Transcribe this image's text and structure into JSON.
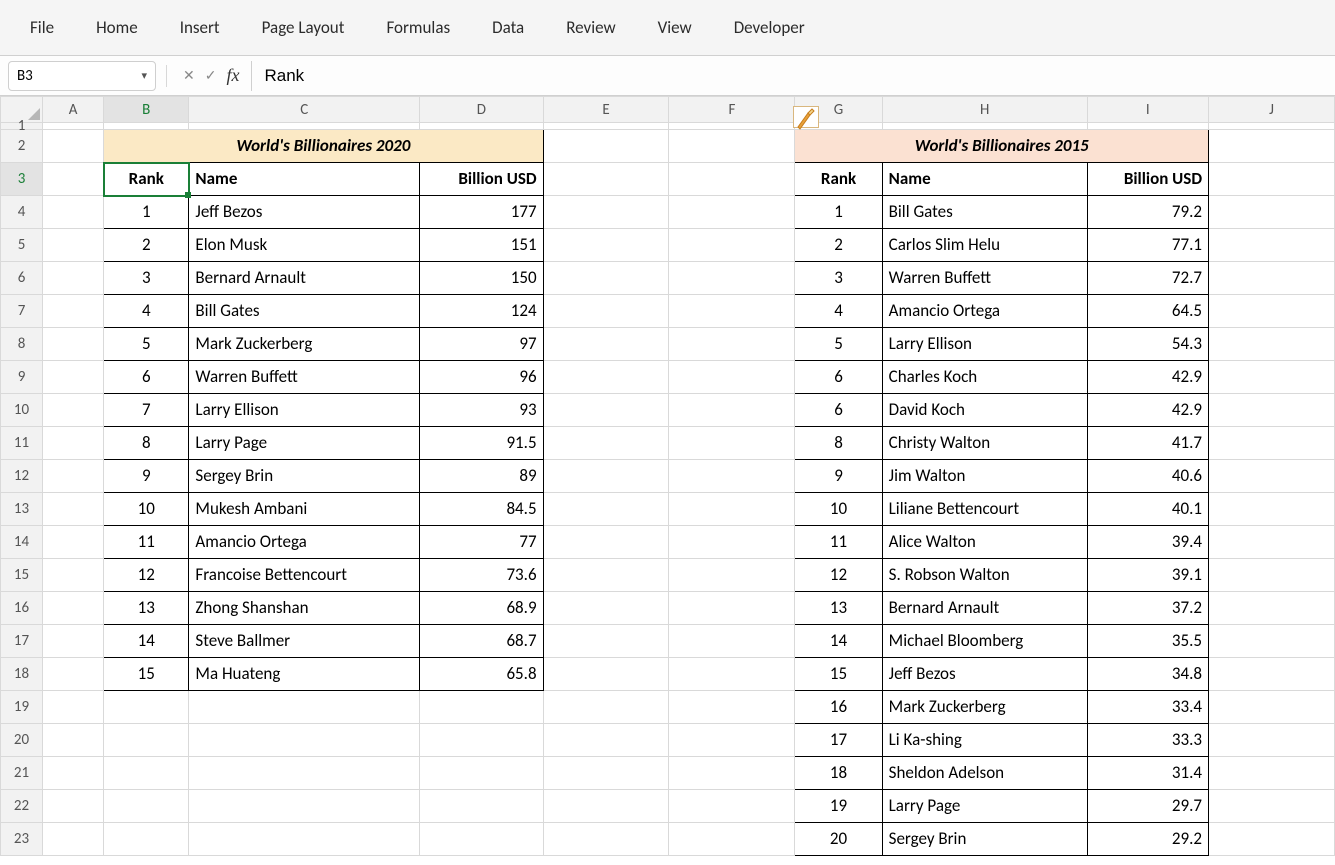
{
  "ribbon": [
    "File",
    "Home",
    "Insert",
    "Page Layout",
    "Formulas",
    "Data",
    "Review",
    "View",
    "Developer"
  ],
  "nameBox": "B3",
  "formula": "Rank",
  "columns": [
    "A",
    "B",
    "C",
    "D",
    "E",
    "F",
    "G",
    "H",
    "I",
    "J"
  ],
  "colWidthClass": {
    "A": "col-A",
    "B": "col-B",
    "C": "col-C",
    "D": "col-D",
    "E": "col-E",
    "F": "col-F",
    "G": "col-G",
    "H": "col-H",
    "I": "col-I",
    "J": "col-J"
  },
  "activeCell": {
    "row": 3,
    "col": "B"
  },
  "title2020": {
    "text": "World's Billionaires 2020",
    "bg": "#fbe9c5"
  },
  "title2015": {
    "text": "World's Billionaires 2015",
    "bg": "#fbe1d2"
  },
  "headers": {
    "rank": "Rank",
    "name": "Name",
    "usd": "Billion USD"
  },
  "t2020": [
    {
      "rank": 1,
      "name": "Jeff Bezos",
      "usd": "177"
    },
    {
      "rank": 2,
      "name": "Elon Musk",
      "usd": "151"
    },
    {
      "rank": 3,
      "name": "Bernard Arnault",
      "usd": "150"
    },
    {
      "rank": 4,
      "name": "Bill Gates",
      "usd": "124"
    },
    {
      "rank": 5,
      "name": "Mark Zuckerberg",
      "usd": "97"
    },
    {
      "rank": 6,
      "name": "Warren Buffett",
      "usd": "96"
    },
    {
      "rank": 7,
      "name": "Larry Ellison",
      "usd": "93"
    },
    {
      "rank": 8,
      "name": "Larry Page",
      "usd": "91.5"
    },
    {
      "rank": 9,
      "name": "Sergey Brin",
      "usd": "89"
    },
    {
      "rank": 10,
      "name": "Mukesh Ambani",
      "usd": "84.5"
    },
    {
      "rank": 11,
      "name": "Amancio Ortega",
      "usd": "77"
    },
    {
      "rank": 12,
      "name": "Francoise Bettencourt",
      "usd": "73.6"
    },
    {
      "rank": 13,
      "name": "Zhong Shanshan",
      "usd": "68.9"
    },
    {
      "rank": 14,
      "name": "Steve Ballmer",
      "usd": "68.7"
    },
    {
      "rank": 15,
      "name": "Ma Huateng",
      "usd": "65.8"
    }
  ],
  "t2015": [
    {
      "rank": 1,
      "name": "Bill Gates",
      "usd": "79.2"
    },
    {
      "rank": 2,
      "name": "Carlos Slim Helu",
      "usd": "77.1"
    },
    {
      "rank": 3,
      "name": "Warren Buffett",
      "usd": "72.7"
    },
    {
      "rank": 4,
      "name": "Amancio Ortega",
      "usd": "64.5"
    },
    {
      "rank": 5,
      "name": "Larry Ellison",
      "usd": "54.3"
    },
    {
      "rank": 6,
      "name": "Charles Koch",
      "usd": "42.9"
    },
    {
      "rank": 6,
      "name": "David Koch",
      "usd": "42.9"
    },
    {
      "rank": 8,
      "name": "Christy Walton",
      "usd": "41.7"
    },
    {
      "rank": 9,
      "name": "Jim Walton",
      "usd": "40.6"
    },
    {
      "rank": 10,
      "name": "Liliane Bettencourt",
      "usd": "40.1"
    },
    {
      "rank": 11,
      "name": "Alice Walton",
      "usd": "39.4"
    },
    {
      "rank": 12,
      "name": "S. Robson Walton",
      "usd": "39.1"
    },
    {
      "rank": 13,
      "name": "Bernard Arnault",
      "usd": "37.2"
    },
    {
      "rank": 14,
      "name": "Michael Bloomberg",
      "usd": "35.5"
    },
    {
      "rank": 15,
      "name": "Jeff Bezos",
      "usd": "34.8"
    },
    {
      "rank": 16,
      "name": "Mark Zuckerberg",
      "usd": "33.4"
    },
    {
      "rank": 17,
      "name": "Li Ka-shing",
      "usd": "33.3"
    },
    {
      "rank": 18,
      "name": "Sheldon Adelson",
      "usd": "31.4"
    },
    {
      "rank": 19,
      "name": "Larry Page",
      "usd": "29.7"
    },
    {
      "rank": 20,
      "name": "Sergey Brin",
      "usd": "29.2"
    }
  ],
  "rowCount": 23
}
